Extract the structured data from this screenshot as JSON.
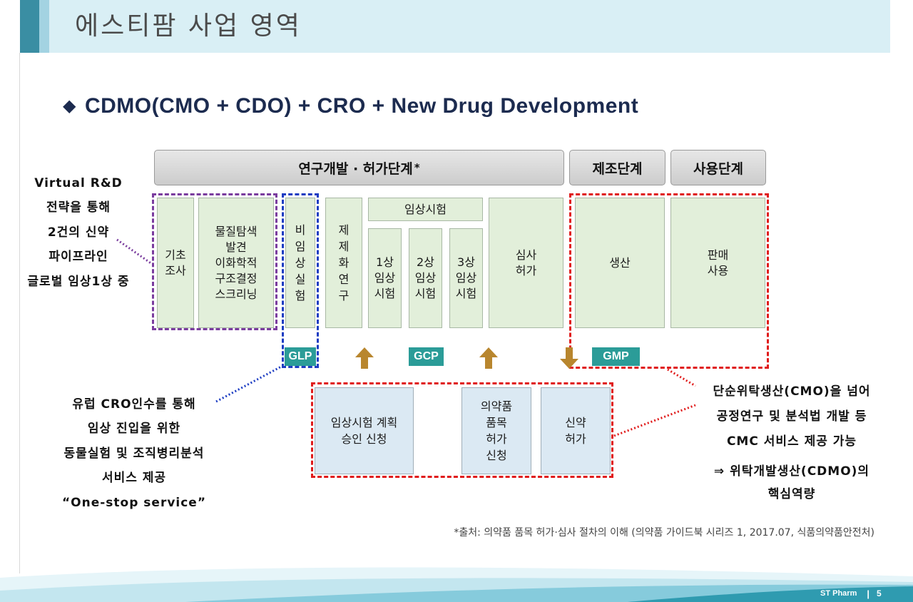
{
  "header": {
    "title": "에스티팜 사업 영역"
  },
  "subtitle": {
    "bullet": "◆",
    "text": "CDMO(CMO + CDO) + CRO + New Drug Development"
  },
  "phases": {
    "research_approval": {
      "label": "연구개발 · 허가단계",
      "mark": "*"
    },
    "manufacturing": {
      "label": "제조단계"
    },
    "usage": {
      "label": "사용단계"
    }
  },
  "stages": {
    "basic_research": "기초\n조사",
    "discovery": "물질탐색\n발견\n이화학적\n구조결정\n스크리닝",
    "nonclinical": "비임상실험",
    "formulation": "제제화연구",
    "clinical": {
      "label": "임상시험",
      "phases": [
        "1상\n임상\n시험",
        "2상\n임상\n시험",
        "3상\n임상\n시험"
      ]
    },
    "review_approval": "심사\n허가",
    "production": "생산",
    "sales_use": "판매\n사용"
  },
  "badges": {
    "glp": "GLP",
    "gcp": "GCP",
    "gmp": "GMP"
  },
  "applications": {
    "clinical_trial_plan": "임상시험 계획\n승인 신청",
    "product_approval": "의약품\n품목\n허가\n신청",
    "new_drug_approval": "신약\n허가"
  },
  "annotations": {
    "virtual_rnd": [
      "Virtual R&D",
      "전략을 통해",
      "2건의 신약",
      "파이프라인",
      "글로벌 임상1상 중"
    ],
    "cro": [
      "유럽 CRO인수를 통해",
      "임상 진입을 위한",
      "동물실험 및 조직병리분석",
      "서비스 제공",
      "“One-stop service”"
    ],
    "cdmo": [
      "단순위탁생산(CMO)을 넘어",
      "공정연구 및 분석법 개발 등",
      "CMC 서비스 제공 가능",
      "⇒ 위탁개발생산(CDMO)의",
      "핵심역량"
    ]
  },
  "footnote": "*출처: 의약품 품목 허가·심사 절차의 이해 (의약품 가이드북 시리즈 1, 2017.07, 식품의약품안전처)",
  "footer": {
    "company": "ST Pharm",
    "separator": "|",
    "page": "5"
  },
  "colors": {
    "header_dark": "#3a8ea3",
    "header_mid": "#a3d3e2",
    "header_band": "#d9eff5",
    "subtitle": "#1c2b4f",
    "stage_fill": "#e2efda",
    "application_fill": "#dbe9f3",
    "badge": "#2b9c98",
    "arrow": "#b8862e",
    "dash_purple": "#7a3c9e",
    "dash_blue": "#1c3cc2",
    "dash_red": "#e01b1b",
    "wave_teal": "#2f9bb0"
  }
}
